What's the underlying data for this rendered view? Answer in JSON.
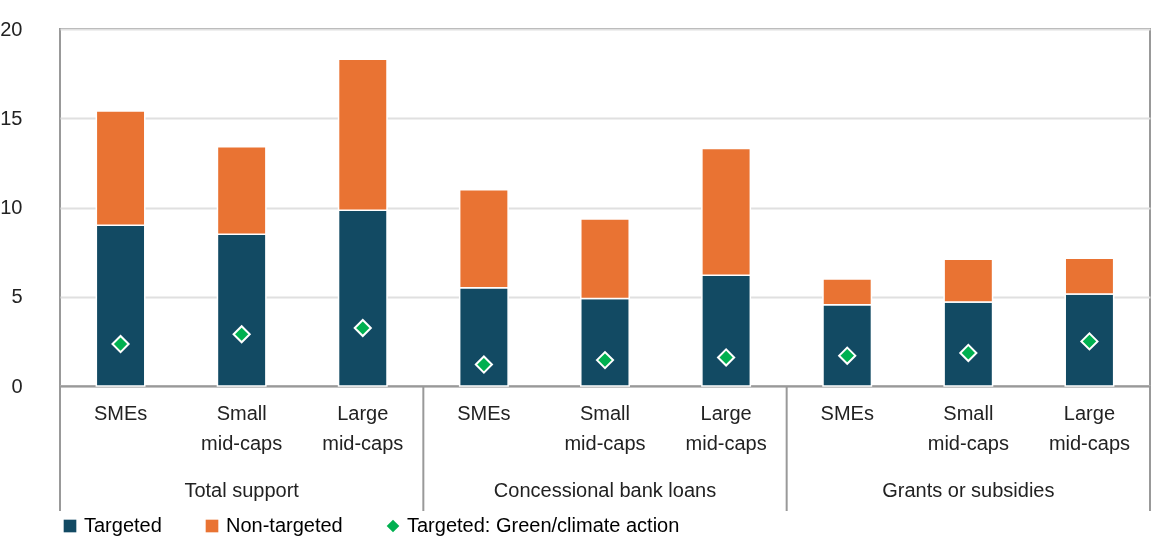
{
  "chart_data": {
    "type": "bar",
    "stacked": true,
    "categories": [
      "SMEs",
      "Small mid-caps",
      "Large mid-caps",
      "SMEs",
      "Small mid-caps",
      "Large mid-caps",
      "SMEs",
      "Small mid-caps",
      "Large mid-caps"
    ],
    "series": [
      {
        "name": "Targeted",
        "color": "#124a63",
        "values": [
          9.0,
          8.5,
          9.85,
          5.5,
          4.9,
          6.2,
          4.55,
          4.7,
          5.15
        ]
      },
      {
        "name": "Non-targeted",
        "color": "#e97333",
        "values": [
          6.4,
          4.9,
          8.45,
          5.5,
          4.45,
          7.1,
          1.45,
          2.4,
          2.0
        ]
      },
      {
        "name": "Targeted: Green/climate action",
        "color": "#00b050",
        "type": "scatter",
        "marker": "diamond",
        "values": [
          2.35,
          2.9,
          3.25,
          1.2,
          1.45,
          1.6,
          1.7,
          1.85,
          2.5
        ]
      }
    ],
    "annotations": [
      "Total support",
      "Concessional bank loans",
      "Grants or subsidies"
    ],
    "ylim": [
      0,
      20
    ],
    "yticks": [
      0,
      5,
      10,
      15,
      20
    ],
    "grid": "y",
    "legend": "bottom"
  }
}
